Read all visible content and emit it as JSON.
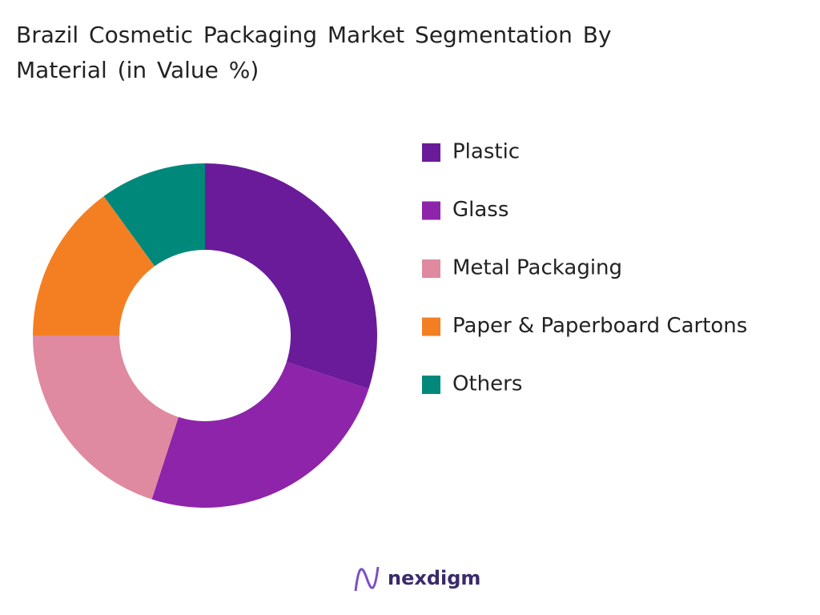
{
  "chart_data": {
    "type": "donut",
    "title": "Brazil Cosmetic Packaging Market Segmentation By Material (in Value %)",
    "categories": [
      "Plastic",
      "Glass",
      "Metal Packaging",
      "Paper & Paperboard Cartons",
      "Others"
    ],
    "values": [
      30,
      25,
      20,
      15,
      10
    ],
    "colors": [
      "#6a1b9a",
      "#8e24aa",
      "#df8aa1",
      "#f47f22",
      "#00897b"
    ],
    "legend": "right"
  },
  "footer": {
    "brand": "nexdigm"
  }
}
